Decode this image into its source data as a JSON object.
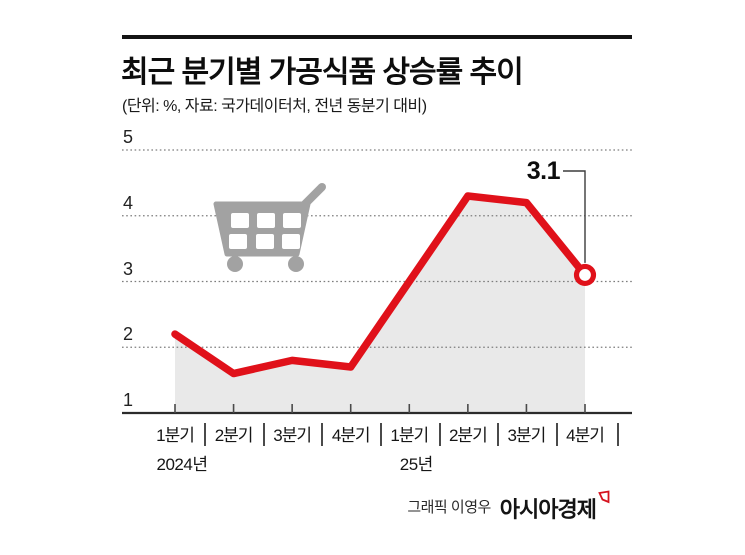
{
  "header": {
    "title": "최근 분기별 가공식품 상승률 추이",
    "subtitle": "(단위: %, 자료: 국가데이터처, 전년 동분기 대비)"
  },
  "chart_data": {
    "type": "line",
    "title": "최근 분기별 가공식품 상승률 추이",
    "unit": "%",
    "source": "국가데이터처",
    "basis": "전년 동분기 대비",
    "categories": [
      "1분기",
      "2분기",
      "3분기",
      "4분기",
      "1분기",
      "2분기",
      "3분기",
      "4분기"
    ],
    "year_labels": [
      {
        "index": 0,
        "label": "2024년"
      },
      {
        "index": 4,
        "label": "25년"
      }
    ],
    "values": [
      2.2,
      1.6,
      1.8,
      1.7,
      3.0,
      4.3,
      4.2,
      3.1
    ],
    "yticks": [
      1,
      2,
      3,
      4,
      5
    ],
    "ytick_labels": [
      "1",
      "2",
      "3",
      "4",
      "5"
    ],
    "ylim": [
      1,
      5
    ],
    "grid": "dotted-horizontal",
    "legend": "none",
    "last_point_label": "3.1",
    "last_point_marker": "open-circle",
    "line_color": "#e0111a",
    "area_color": "#e9e9e9",
    "marker_fill": "#ffffff",
    "axis_color": "#2b2b2b",
    "grid_color": "#7d7d7d"
  },
  "annotations": {
    "last_value_label": "3.1"
  },
  "decorations": {
    "cart_icon": "shopping-cart",
    "cart_color": "#a2a2a2"
  },
  "footer": {
    "credit": "그래픽 이영우",
    "brand": "아시아경제",
    "brand_mark_color": "#d5121e"
  }
}
